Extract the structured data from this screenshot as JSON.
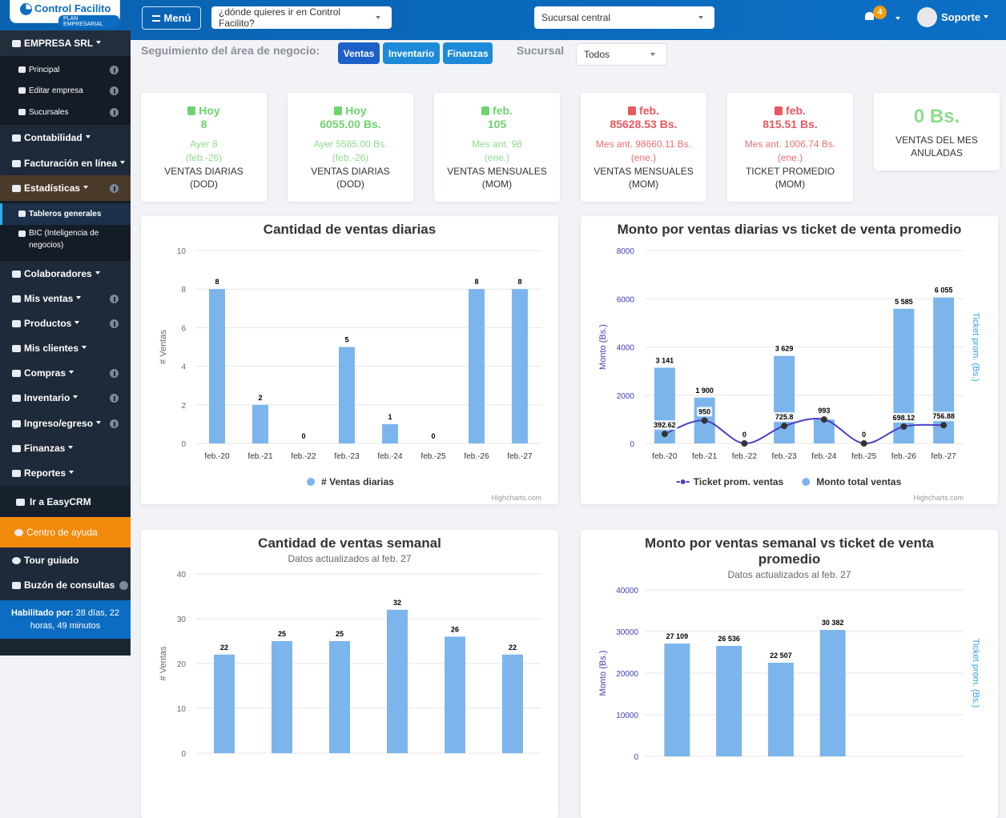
{
  "sidebar": {
    "brand": "Control Facilito",
    "plan": "PLAN EMPRESARIAL",
    "company": "EMPRESA SRL",
    "company_items": [
      "Principal",
      "Editar empresa",
      "Sucursales"
    ],
    "menu": [
      "Contabilidad",
      "Facturación en línea",
      "Estadísticas"
    ],
    "stats_items": [
      "Tableros generales",
      "BIC (Inteligencia de negocios)"
    ],
    "modules": [
      "Colaboradores",
      "Mis ventas",
      "Productos",
      "Mis clientes",
      "Compras",
      "Inventario",
      "Ingreso/egreso",
      "Finanzas",
      "Reportes"
    ],
    "links": [
      "Ir a EasyCRM",
      "Centro de ayuda",
      "Tour guiado",
      "Buzón de consultas"
    ],
    "footer": {
      "label": "Habilitado por:",
      "text": "28 días, 22 horas, 49 minutos"
    }
  },
  "topbar": {
    "menu": "Menú",
    "search": "¿dónde quieres ir en Control Facilito?",
    "branch": "Sucursal central",
    "notifications": 4,
    "user": "Soporte"
  },
  "filters": {
    "label": "Seguimiento del área de negocio:",
    "areas": [
      "Ventas",
      "Inventario",
      "Finanzas"
    ],
    "branch_label": "Sucursal",
    "branch": "Todos"
  },
  "kpis": [
    {
      "trend": "up",
      "period": "Hoy",
      "value": "8",
      "previous": "Ayer 8",
      "previous_date": "(feb.-26)",
      "label": "VENTAS DIARIAS",
      "basis": "(DOD)"
    },
    {
      "trend": "up",
      "period": "Hoy",
      "value": "6055.00 Bs.",
      "previous": "Ayer 5585.00 Bs.",
      "previous_date": "(feb.-26)",
      "label": "VENTAS DIARIAS",
      "basis": "(DOD)"
    },
    {
      "trend": "up",
      "period": "feb.",
      "value": "105",
      "previous": "Mes ant. 98",
      "previous_date": "(ene.)",
      "label": "VENTAS MENSUALES",
      "basis": "(MOM)"
    },
    {
      "trend": "down",
      "period": "feb.",
      "value": "85628.53 Bs.",
      "previous": "Mes ant. 98660.11 Bs.",
      "previous_date": "(ene.)",
      "label": "VENTAS MENSUALES",
      "basis": "(MOM)"
    },
    {
      "trend": "down",
      "period": "feb.",
      "value": "815.51 Bs.",
      "previous": "Mes ant. 1006.74 Bs.",
      "previous_date": "(ene.)",
      "label": "TICKET PROMEDIO",
      "basis": "(MOM)"
    },
    {
      "value": "0 Bs.",
      "label": "VENTAS DEL MES ANULADAS"
    }
  ],
  "charts": [
    {
      "type": "bar",
      "title": "Cantidad de ventas diarias",
      "y_label": "# Ventas",
      "categories": [
        "feb.-20",
        "feb.-21",
        "feb.-22",
        "feb.-23",
        "feb.-24",
        "feb.-25",
        "feb.-26",
        "feb.-27"
      ],
      "series": [
        {
          "name": "# Ventas diarias",
          "type": "column",
          "color": "#7cb5ec",
          "values": [
            8,
            2,
            0,
            5,
            1,
            0,
            8,
            8
          ]
        }
      ],
      "ylim": [
        0,
        10
      ],
      "yticks": [
        0,
        2,
        4,
        6,
        8,
        10
      ],
      "grid": true,
      "legend": "bottom",
      "credits": "Highcharts.com",
      "axis_color": "#666666"
    },
    {
      "type": "combo",
      "title": "Monto por ventas diarias vs ticket de venta promedio",
      "y_label": "Monto (Bs.)",
      "y2_label": "Ticket prom. (Bs.)",
      "categories": [
        "feb.-20",
        "feb.-21",
        "feb.-22",
        "feb.-23",
        "feb.-24",
        "feb.-25",
        "feb.-26",
        "feb.-27"
      ],
      "series": [
        {
          "name": "Ticket prom. ventas",
          "type": "line",
          "axis": "y2",
          "color": "#4b3fc5",
          "values": [
            392.62,
            950,
            0,
            725.8,
            993,
            0,
            698.12,
            756.88
          ]
        },
        {
          "name": "Monto total ventas",
          "type": "column",
          "color": "#7cb5ec",
          "values": [
            3141,
            1900,
            0,
            3629,
            993,
            0,
            5585,
            6055
          ],
          "value_labels": [
            "3 141",
            "1 900",
            "0",
            "3 629",
            "993",
            "0",
            "5 585",
            "6 055"
          ]
        }
      ],
      "ylim": [
        0,
        8000
      ],
      "yticks": [
        0,
        2000,
        4000,
        6000,
        8000
      ],
      "y2lim": [
        0,
        8000
      ],
      "grid": true,
      "legend": "bottom",
      "credits": "Highcharts.com",
      "axis_color": "#3d3db4",
      "y2_color": "#2ba4e8"
    },
    {
      "type": "bar",
      "title": "Cantidad de ventas semanal",
      "subtitle": "Datos actualizados al feb. 27",
      "y_label": "# Ventas",
      "categories": [
        null,
        null,
        null,
        null,
        null,
        null
      ],
      "values": [
        22,
        25,
        25,
        32,
        26,
        22
      ],
      "color": "#7cb5ec",
      "ylim": [
        0,
        40
      ],
      "yticks": [
        0,
        10,
        20,
        30,
        40
      ],
      "grid": true,
      "axis_color": "#666666"
    },
    {
      "type": "bar",
      "title": "Monto por ventas semanal vs ticket de venta promedio",
      "subtitle": "Datos actualizados al feb. 27",
      "y_label": "Monto (Bs.)",
      "y2_label": "Ticket prom. (Bs.)",
      "categories": [
        null,
        null,
        null,
        null
      ],
      "values": [
        27109,
        26536,
        22507,
        30382
      ],
      "value_labels": [
        "27 109",
        "26 536",
        "22 507",
        "30 382"
      ],
      "color": "#7cb5ec",
      "ylim": [
        0,
        40000
      ],
      "yticks": [
        0,
        10000,
        20000,
        30000,
        40000
      ],
      "grid": true,
      "axis_color": "#3d3db4",
      "y2_color": "#2ba4e8"
    }
  ]
}
